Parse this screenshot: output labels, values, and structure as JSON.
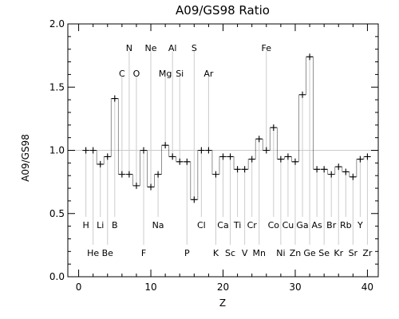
{
  "chart_data": {
    "type": "line",
    "title": "A09/GS98 Ratio",
    "xlabel": "Z",
    "ylabel": "A09/GS98",
    "xlim": [
      -1.5,
      41.5
    ],
    "ylim": [
      0.0,
      2.0
    ],
    "xticks": [
      "0",
      "10",
      "20",
      "30",
      "40"
    ],
    "xtick_values": [
      0,
      10,
      20,
      30,
      40
    ],
    "yticks": [
      "0.0",
      "0.5",
      "1.0",
      "1.5",
      "2.0"
    ],
    "ytick_values": [
      0.0,
      0.5,
      1.0,
      1.5,
      2.0
    ],
    "reference_line": 1.0,
    "series": [
      {
        "style": "histogram-step with plus markers",
        "x": [
          1,
          2,
          3,
          4,
          5,
          6,
          7,
          8,
          9,
          10,
          11,
          12,
          13,
          14,
          15,
          16,
          17,
          18,
          19,
          20,
          21,
          22,
          23,
          24,
          25,
          26,
          27,
          28,
          29,
          30,
          31,
          32,
          33,
          34,
          35,
          36,
          37,
          38,
          39,
          40
        ],
        "values": [
          1.0,
          1.0,
          0.89,
          0.95,
          1.41,
          0.81,
          0.81,
          0.72,
          1.0,
          0.71,
          0.81,
          1.04,
          0.95,
          0.91,
          0.91,
          0.61,
          1.0,
          1.0,
          0.81,
          0.95,
          0.95,
          0.85,
          0.85,
          0.93,
          1.09,
          1.0,
          1.18,
          0.93,
          0.95,
          0.91,
          1.44,
          1.74,
          0.85,
          0.85,
          0.81,
          0.87,
          0.83,
          0.79,
          0.93,
          0.95
        ]
      }
    ],
    "elements": [
      {
        "z": 1,
        "symbol": "H",
        "row": "low1"
      },
      {
        "z": 2,
        "symbol": "He",
        "row": "low2"
      },
      {
        "z": 3,
        "symbol": "Li",
        "row": "low1"
      },
      {
        "z": 4,
        "symbol": "Be",
        "row": "low2"
      },
      {
        "z": 5,
        "symbol": "B",
        "row": "low1"
      },
      {
        "z": 6,
        "symbol": "C",
        "row": "high2"
      },
      {
        "z": 7,
        "symbol": "N",
        "row": "high1"
      },
      {
        "z": 8,
        "symbol": "O",
        "row": "high2"
      },
      {
        "z": 9,
        "symbol": "F",
        "row": "low2"
      },
      {
        "z": 10,
        "symbol": "Ne",
        "row": "high1"
      },
      {
        "z": 11,
        "symbol": "Na",
        "row": "low1"
      },
      {
        "z": 12,
        "symbol": "Mg",
        "row": "high2"
      },
      {
        "z": 13,
        "symbol": "Al",
        "row": "high1"
      },
      {
        "z": 14,
        "symbol": "Si",
        "row": "high2"
      },
      {
        "z": 15,
        "symbol": "P",
        "row": "low2"
      },
      {
        "z": 16,
        "symbol": "S",
        "row": "high1"
      },
      {
        "z": 17,
        "symbol": "Cl",
        "row": "low1"
      },
      {
        "z": 18,
        "symbol": "Ar",
        "row": "high2"
      },
      {
        "z": 19,
        "symbol": "K",
        "row": "low2"
      },
      {
        "z": 20,
        "symbol": "Ca",
        "row": "low1"
      },
      {
        "z": 21,
        "symbol": "Sc",
        "row": "low2"
      },
      {
        "z": 22,
        "symbol": "Ti",
        "row": "low1"
      },
      {
        "z": 23,
        "symbol": "V",
        "row": "low2"
      },
      {
        "z": 24,
        "symbol": "Cr",
        "row": "low1"
      },
      {
        "z": 25,
        "symbol": "Mn",
        "row": "low2"
      },
      {
        "z": 26,
        "symbol": "Fe",
        "row": "high1"
      },
      {
        "z": 27,
        "symbol": "Co",
        "row": "low1"
      },
      {
        "z": 28,
        "symbol": "Ni",
        "row": "low2"
      },
      {
        "z": 29,
        "symbol": "Cu",
        "row": "low1"
      },
      {
        "z": 30,
        "symbol": "Zn",
        "row": "low2"
      },
      {
        "z": 31,
        "symbol": "Ga",
        "row": "low1"
      },
      {
        "z": 32,
        "symbol": "Ge",
        "row": "low2"
      },
      {
        "z": 33,
        "symbol": "As",
        "row": "low1"
      },
      {
        "z": 34,
        "symbol": "Se",
        "row": "low2"
      },
      {
        "z": 35,
        "symbol": "Br",
        "row": "low1"
      },
      {
        "z": 36,
        "symbol": "Kr",
        "row": "low2"
      },
      {
        "z": 37,
        "symbol": "Rb",
        "row": "low1"
      },
      {
        "z": 38,
        "symbol": "Sr",
        "row": "low2"
      },
      {
        "z": 39,
        "symbol": "Y",
        "row": "low1"
      },
      {
        "z": 40,
        "symbol": "Zr",
        "row": "low2"
      }
    ],
    "label_rows": {
      "high1": 1.81,
      "high2": 1.61,
      "low1": 0.41,
      "low2": 0.19
    },
    "colors": {
      "line": "#000000",
      "guide": "#cccccc",
      "reference": "#cccccc"
    },
    "grid": false,
    "legend": "none"
  }
}
